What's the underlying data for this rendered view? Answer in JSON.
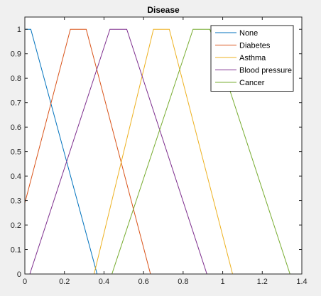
{
  "chart_data": {
    "type": "line",
    "title": "Disease",
    "xlabel": "",
    "ylabel": "",
    "xlim": [
      0,
      1.4
    ],
    "ylim": [
      0,
      1.05
    ],
    "xticks": [
      "0",
      "0.2",
      "0.4",
      "0.6",
      "0.8",
      "1",
      "1.2",
      "1.4"
    ],
    "yticks": [
      "0",
      "0.1",
      "0.2",
      "0.3",
      "0.4",
      "0.5",
      "0.6",
      "0.7",
      "0.8",
      "0.9",
      "1"
    ],
    "grid": false,
    "legend_position": "top-right",
    "series": [
      {
        "name": "None",
        "color": "#0072BD",
        "x": [
          0,
          0.03,
          0.365,
          1.4
        ],
        "y": [
          1,
          1,
          0,
          0
        ]
      },
      {
        "name": "Diabetes",
        "color": "#D95319",
        "x": [
          0,
          0.23,
          0.31,
          0.635,
          1.4
        ],
        "y": [
          0.29,
          1,
          1,
          0,
          0
        ]
      },
      {
        "name": "Asthma",
        "color": "#EDB120",
        "x": [
          0,
          0.35,
          0.65,
          0.73,
          1.05,
          1.4
        ],
        "y": [
          0,
          0,
          1,
          1,
          0,
          0
        ]
      },
      {
        "name": "Blood pressure",
        "color": "#7E2F8E",
        "x": [
          0,
          0.025,
          0.43,
          0.515,
          0.92,
          1.4
        ],
        "y": [
          0,
          0,
          1,
          1,
          0,
          0
        ]
      },
      {
        "name": "Cancer",
        "color": "#77AC30",
        "x": [
          0,
          0.44,
          0.85,
          0.935,
          1.34,
          1.4
        ],
        "y": [
          0,
          0,
          1,
          1,
          0,
          0
        ]
      }
    ]
  }
}
